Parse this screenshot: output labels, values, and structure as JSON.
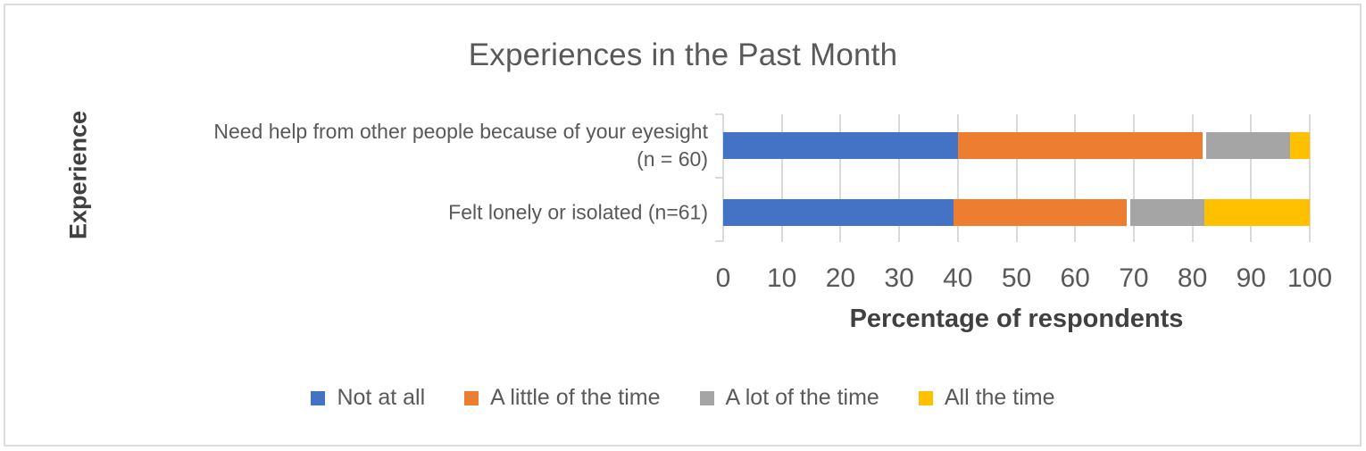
{
  "chart_data": {
    "type": "bar",
    "orientation": "horizontal",
    "stacked": true,
    "title": "Experiences in the Past Month",
    "xlabel": "Percentage of respondents",
    "ylabel": "Experience",
    "xlim": [
      0,
      100
    ],
    "x_ticks": [
      0,
      10,
      20,
      30,
      40,
      50,
      60,
      70,
      80,
      90,
      100
    ],
    "grid": true,
    "legend_position": "bottom",
    "categories": [
      {
        "lines": [
          "Need help from other people because of your eyesight",
          "(n = 60)"
        ]
      },
      {
        "lines": [
          "Felt lonely or isolated (n=61)"
        ]
      }
    ],
    "series": [
      {
        "name": "Not at all",
        "color": "#4472C4",
        "values": [
          40.0,
          39.34
        ]
      },
      {
        "name": "A little of the time",
        "color": "#ED7D31",
        "values": [
          41.67,
          29.51
        ]
      },
      {
        "name": "A lot of the time",
        "color": "#A5A5A5",
        "values": [
          15.0,
          13.11
        ]
      },
      {
        "name": "All the time",
        "color": "#FFC000",
        "values": [
          3.33,
          18.03
        ]
      }
    ]
  },
  "style_colors": {
    "frame_border": "#dcdcdc",
    "gridline": "#d9d9d9",
    "title_text": "#595959",
    "axis_title_text": "#404040"
  }
}
